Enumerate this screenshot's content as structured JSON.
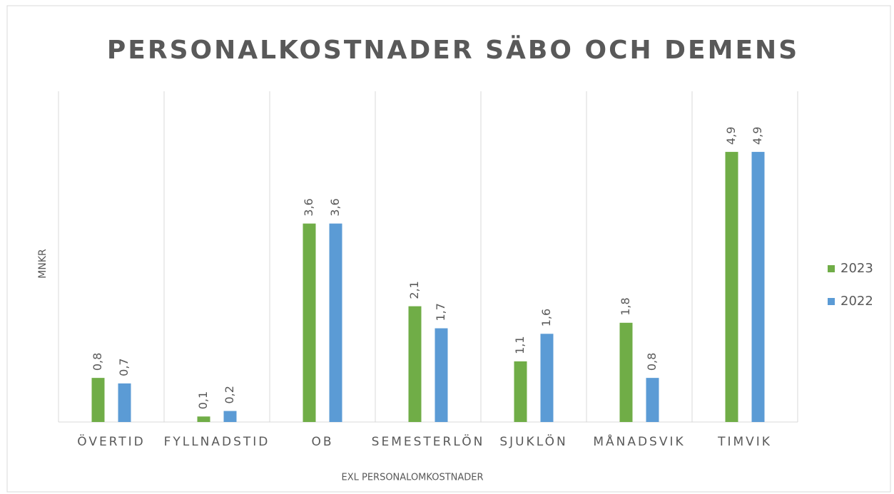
{
  "chart_data": {
    "type": "bar",
    "title": "PERSONALKOSTNADER SÄBO OCH DEMENS",
    "x_label": "EXL PERSONALOMKOSTNADER",
    "y_label": "MNKR",
    "categories": [
      "ÖVERTID",
      "FYLLNADSTID",
      "OB",
      "SEMESTERLÖN",
      "SJUKLÖN",
      "MÅNADSVIK",
      "TIMVIK"
    ],
    "series": [
      {
        "name": "2023",
        "color": "#70ad47",
        "values": [
          0.8,
          0.1,
          3.6,
          2.1,
          1.1,
          1.8,
          4.9
        ],
        "value_labels": [
          "0,8",
          "0,1",
          "3,6",
          "2,1",
          "1,1",
          "1,8",
          "4,9"
        ]
      },
      {
        "name": "2022",
        "color": "#5b9bd5",
        "values": [
          0.7,
          0.2,
          3.6,
          1.7,
          1.6,
          0.8,
          4.9
        ],
        "value_labels": [
          "0,7",
          "0,2",
          "3,6",
          "1,7",
          "1,6",
          "0,8",
          "4,9"
        ]
      }
    ],
    "ylim": [
      0,
      6
    ],
    "legend": "right"
  }
}
